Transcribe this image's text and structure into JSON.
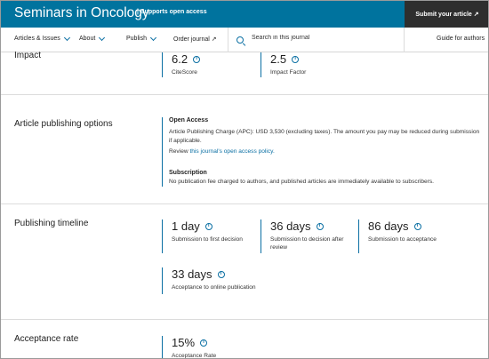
{
  "header": {
    "journal_title": "Seminars in Oncology",
    "open_access_tag": "| Supports open access",
    "submit_label": "Submit your article ↗"
  },
  "nav": {
    "items": [
      {
        "label": "Articles & Issues"
      },
      {
        "label": "About"
      },
      {
        "label": "Publish"
      },
      {
        "label": "Order journal ↗"
      }
    ],
    "search_placeholder": "Search in this journal",
    "guide_label": "Guide for authors"
  },
  "impact": {
    "label": "Impact",
    "citescore": {
      "value": "6.2",
      "label": "CiteScore"
    },
    "impact_factor": {
      "value": "2.5",
      "label": "Impact Factor"
    }
  },
  "publishing_options": {
    "label": "Article publishing options",
    "open_access_heading": "Open Access",
    "open_access_text": "Article Publishing Charge (APC): USD 3,530 (excluding taxes). The amount you pay may be reduced during submission if applicable.",
    "review_prefix": "Review",
    "review_link": "this journal's open access policy.",
    "subscription_heading": "Subscription",
    "subscription_text": "No publication fee charged to authors, and published articles are immediately available to subscribers."
  },
  "timeline": {
    "label": "Publishing timeline",
    "first_decision": {
      "value": "1 day",
      "label": "Submission to first decision"
    },
    "decision_after_review": {
      "value": "36 days",
      "label": "Submission to decision after review"
    },
    "acceptance": {
      "value": "86 days",
      "label": "Submission to acceptance"
    },
    "online_publication": {
      "value": "33 days",
      "label": "Acceptance to online publication"
    }
  },
  "acceptance": {
    "label": "Acceptance rate",
    "value": "15%",
    "rate_label": "Acceptance Rate"
  },
  "icons": {
    "info": "info-icon",
    "chevron": "chevron-down-icon",
    "search": "search-icon",
    "external": "external-link-icon"
  },
  "colors": {
    "header_bg": "#00739e",
    "submit_bg": "#2e2e2e",
    "accent": "#0a6fa3"
  }
}
